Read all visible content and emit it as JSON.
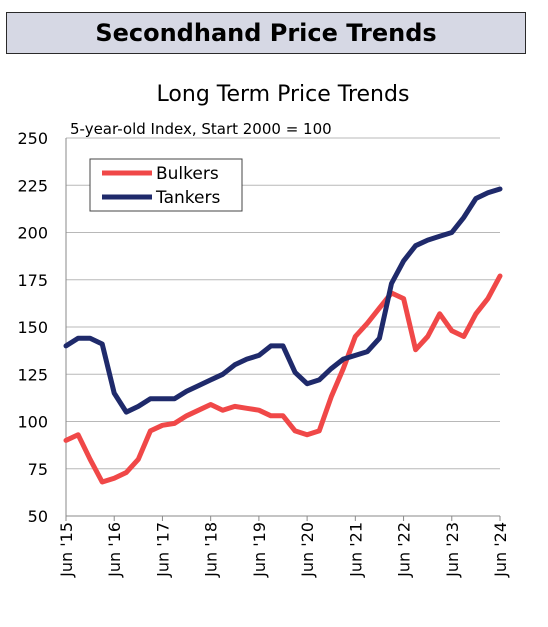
{
  "header": {
    "title": "Secondhand Price Trends"
  },
  "chart_data": {
    "type": "line",
    "title": "Long Term Price Trends",
    "subtitle": "5-year-old Index, Start 2000 = 100",
    "xlabel": "",
    "ylabel": "",
    "ylim": [
      50,
      250
    ],
    "yticks": [
      50,
      75,
      100,
      125,
      150,
      175,
      200,
      225,
      250
    ],
    "xticks": [
      "Jun '15",
      "Jun '16",
      "Jun '17",
      "Jun '18",
      "Jun '19",
      "Jun '20",
      "Jun '21",
      "Jun '22",
      "Jun '23",
      "Jun '24"
    ],
    "grid": "horizontal",
    "legend": "top-left",
    "series": [
      {
        "name": "Bulkers",
        "color": "#f04848",
        "points": [
          [
            "Jun '15",
            90
          ],
          [
            "Sep '15",
            93
          ],
          [
            "Dec '15",
            80
          ],
          [
            "Mar '16",
            68
          ],
          [
            "Jun '16",
            70
          ],
          [
            "Sep '16",
            73
          ],
          [
            "Dec '16",
            80
          ],
          [
            "Mar '17",
            95
          ],
          [
            "Jun '17",
            98
          ],
          [
            "Sep '17",
            99
          ],
          [
            "Dec '17",
            103
          ],
          [
            "Mar '18",
            106
          ],
          [
            "Jun '18",
            109
          ],
          [
            "Sep '18",
            106
          ],
          [
            "Dec '18",
            108
          ],
          [
            "Mar '19",
            107
          ],
          [
            "Jun '19",
            106
          ],
          [
            "Sep '19",
            103
          ],
          [
            "Dec '19",
            103
          ],
          [
            "Mar '20",
            95
          ],
          [
            "Jun '20",
            93
          ],
          [
            "Sep '20",
            95
          ],
          [
            "Dec '20",
            113
          ],
          [
            "Mar '21",
            128
          ],
          [
            "Jun '21",
            145
          ],
          [
            "Sep '21",
            152
          ],
          [
            "Dec '21",
            160
          ],
          [
            "Mar '22",
            168
          ],
          [
            "Jun '22",
            165
          ],
          [
            "Sep '22",
            138
          ],
          [
            "Dec '22",
            145
          ],
          [
            "Mar '23",
            157
          ],
          [
            "Jun '23",
            148
          ],
          [
            "Sep '23",
            145
          ],
          [
            "Dec '23",
            157
          ],
          [
            "Mar '24",
            165
          ],
          [
            "Jun '24",
            177
          ]
        ]
      },
      {
        "name": "Tankers",
        "color": "#1f2a6b",
        "points": [
          [
            "Jun '15",
            140
          ],
          [
            "Sep '15",
            144
          ],
          [
            "Dec '15",
            144
          ],
          [
            "Mar '16",
            141
          ],
          [
            "Jun '16",
            115
          ],
          [
            "Sep '16",
            105
          ],
          [
            "Dec '16",
            108
          ],
          [
            "Mar '17",
            112
          ],
          [
            "Jun '17",
            112
          ],
          [
            "Sep '17",
            112
          ],
          [
            "Dec '17",
            116
          ],
          [
            "Mar '18",
            119
          ],
          [
            "Jun '18",
            122
          ],
          [
            "Sep '18",
            125
          ],
          [
            "Dec '18",
            130
          ],
          [
            "Mar '19",
            133
          ],
          [
            "Jun '19",
            135
          ],
          [
            "Sep '19",
            140
          ],
          [
            "Dec '19",
            140
          ],
          [
            "Mar '20",
            126
          ],
          [
            "Jun '20",
            120
          ],
          [
            "Sep '20",
            122
          ],
          [
            "Dec '20",
            128
          ],
          [
            "Mar '21",
            133
          ],
          [
            "Jun '21",
            135
          ],
          [
            "Sep '21",
            137
          ],
          [
            "Dec '21",
            144
          ],
          [
            "Mar '22",
            173
          ],
          [
            "Jun '22",
            185
          ],
          [
            "Sep '22",
            193
          ],
          [
            "Dec '22",
            196
          ],
          [
            "Mar '23",
            198
          ],
          [
            "Jun '23",
            200
          ],
          [
            "Sep '23",
            208
          ],
          [
            "Dec '23",
            218
          ],
          [
            "Mar '24",
            221
          ],
          [
            "Jun '24",
            223
          ]
        ]
      }
    ]
  }
}
